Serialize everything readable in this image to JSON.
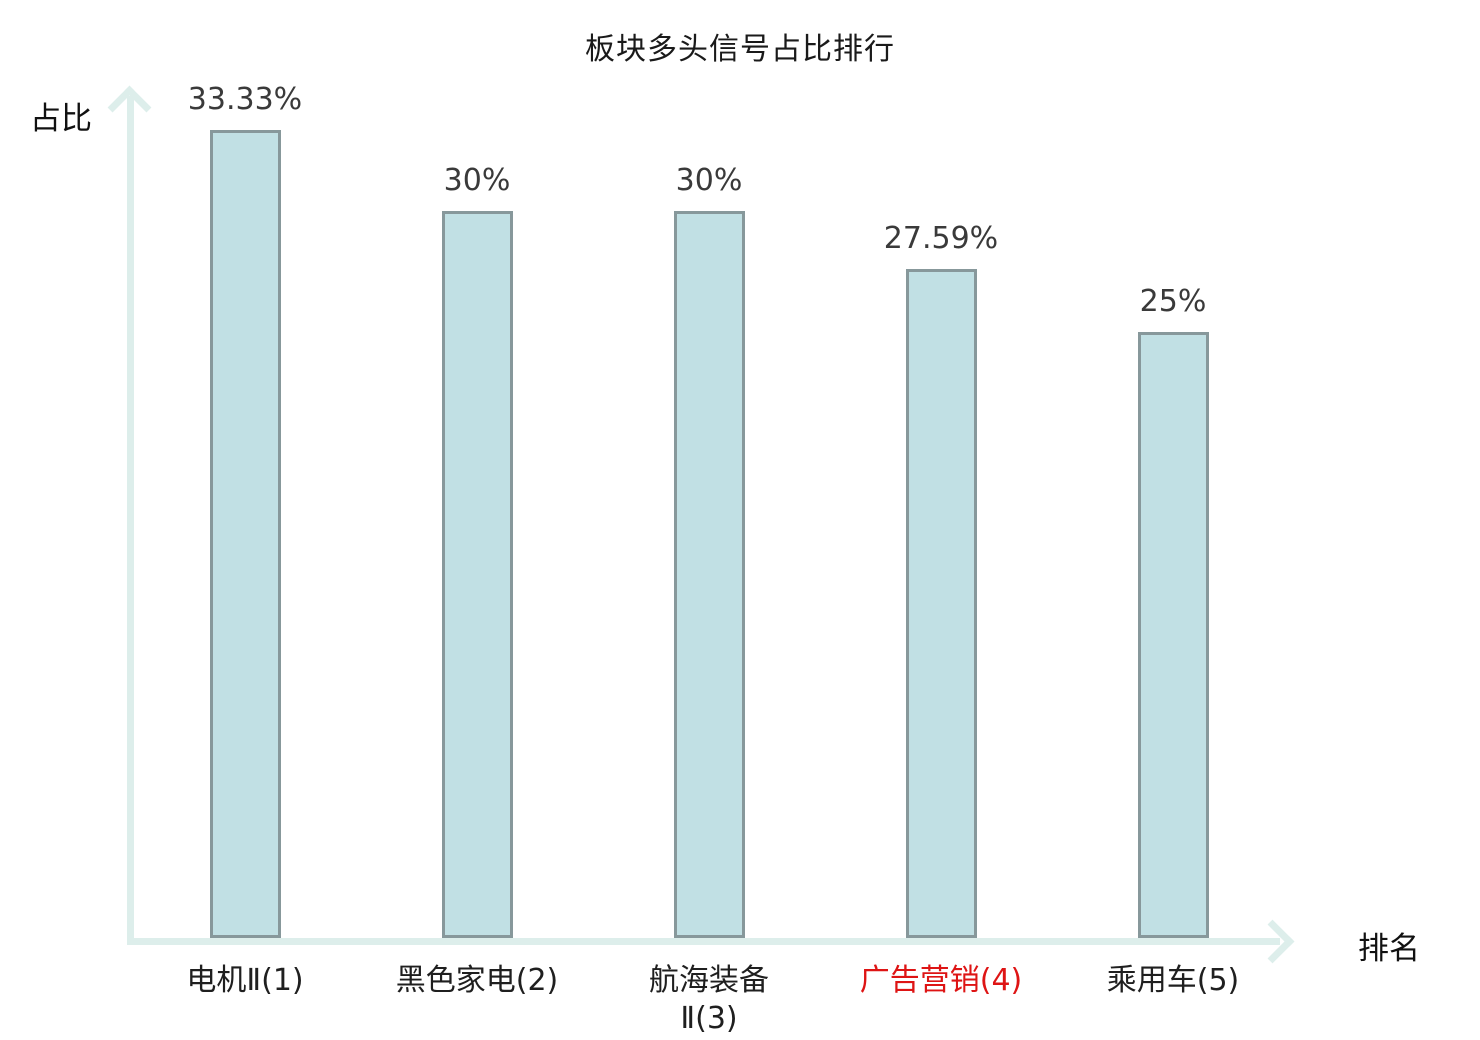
{
  "chart_data": {
    "type": "bar",
    "title": "板块多头信号占比排行",
    "xlabel": "排名",
    "ylabel": "占比",
    "categories": [
      "电机Ⅱ(1)",
      "黑色家电(2)",
      "航海装备\nⅡ(3)",
      "广告营销(4)",
      "乘用车(5)"
    ],
    "values": [
      33.33,
      30,
      30,
      27.59,
      25
    ],
    "value_labels": [
      "33.33%",
      "30%",
      "30%",
      "27.59%",
      "25%"
    ],
    "highlighted_index": 3,
    "ylim": [
      0,
      35
    ],
    "grid": false,
    "legend": "none",
    "colors": {
      "bar_fill": "#c1e0e4",
      "bar_border": "#87989b",
      "axis": "#ddeeeb",
      "value_text": "#3a3a3a",
      "category_text": "#1f1f1f",
      "highlight_text": "#de1414",
      "title_text": "#1a1a1a"
    }
  }
}
